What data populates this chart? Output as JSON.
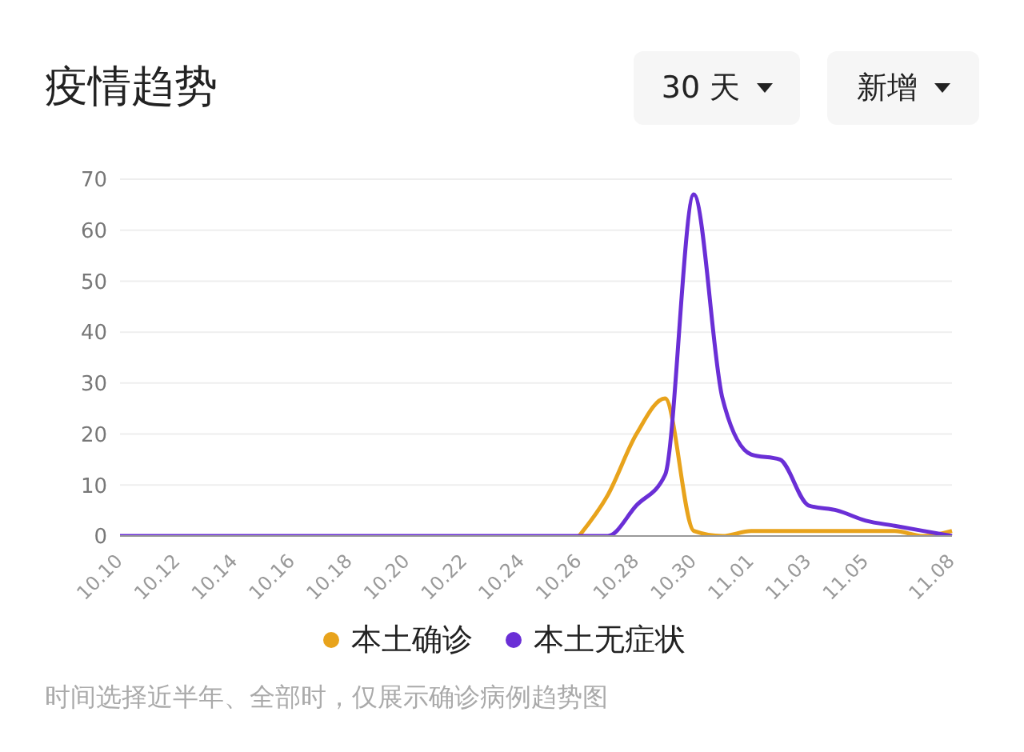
{
  "chart_data": {
    "type": "line",
    "title": "疫情趋势",
    "categories": [
      "10.10",
      null,
      "10.12",
      null,
      "10.14",
      null,
      "10.16",
      null,
      "10.18",
      null,
      "10.20",
      null,
      "10.22",
      null,
      "10.24",
      null,
      "10.26",
      null,
      "10.28",
      null,
      "10.30",
      null,
      "11.01",
      null,
      "11.03",
      null,
      "11.05",
      null,
      null,
      "11.08"
    ],
    "series": [
      {
        "name": "本土确诊",
        "color": "#e8a31c",
        "values": [
          null,
          null,
          null,
          null,
          null,
          null,
          null,
          null,
          null,
          null,
          null,
          null,
          null,
          null,
          null,
          null,
          0,
          8,
          20,
          27,
          1,
          0,
          1,
          1,
          1,
          1,
          1,
          1,
          0,
          1
        ]
      },
      {
        "name": "本土无症状",
        "color": "#6a2fd6",
        "values": [
          0,
          0,
          0,
          0,
          0,
          0,
          0,
          0,
          0,
          0,
          0,
          0,
          0,
          0,
          0,
          0,
          0,
          0,
          6,
          12,
          67,
          27,
          16,
          15,
          6,
          5,
          3,
          2,
          1,
          0
        ]
      }
    ],
    "ylim": [
      0,
      70
    ],
    "yticks": [
      0,
      10,
      20,
      30,
      40,
      50,
      60,
      70
    ],
    "grid": "y",
    "legend": "bottom",
    "marker": "none",
    "line_style": "solid",
    "annotations": [
      "30 天",
      "新增",
      "时间选择近半年、全部时，仅展示确诊病例趋势图"
    ]
  }
}
